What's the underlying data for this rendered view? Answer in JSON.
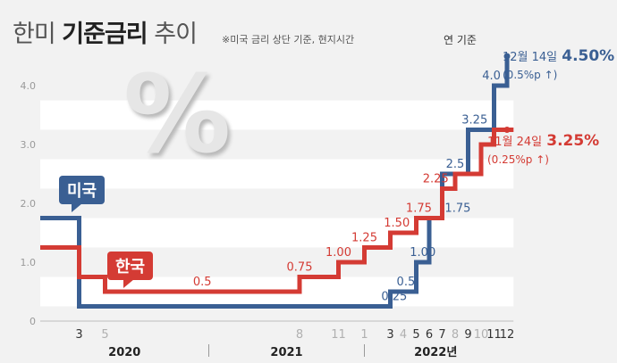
{
  "title": {
    "prefix": "한미",
    "bold": "기준금리",
    "suffix": "추이"
  },
  "note": "※미국 금리 상단 기준, 현지시간",
  "basis": "연 기준",
  "percent_symbol": "%",
  "labels": {
    "us": "미국",
    "kr": "한국"
  },
  "annotations": {
    "us": {
      "date": "12월 14일",
      "rate": "4.50%",
      "delta": "(0.5%p ↑)"
    },
    "kr": {
      "date": "11월 24일",
      "rate": "3.25%",
      "delta": "(0.25%p ↑)"
    }
  },
  "colors": {
    "us": "#3a5f93",
    "kr": "#d43b34",
    "band": "#ffffff",
    "axis": "#555555",
    "muted": "#b0b0b0"
  },
  "chart_data": {
    "type": "line",
    "step": true,
    "ylim": [
      0,
      4.5
    ],
    "yticks": [
      "0",
      "1.0",
      "2.0",
      "3.0",
      "4.0"
    ],
    "xticks": [
      {
        "label": "3",
        "month": 3,
        "emphasis": true
      },
      {
        "label": "5",
        "month": 5,
        "emphasis": false
      },
      {
        "label": "8",
        "month": 20,
        "emphasis": false
      },
      {
        "label": "11",
        "month": 23,
        "emphasis": false
      },
      {
        "label": "1",
        "month": 25,
        "emphasis": false
      },
      {
        "label": "3",
        "month": 27,
        "emphasis": true
      },
      {
        "label": "4",
        "month": 28,
        "emphasis": false
      },
      {
        "label": "5",
        "month": 29,
        "emphasis": true
      },
      {
        "label": "6",
        "month": 30,
        "emphasis": true
      },
      {
        "label": "7",
        "month": 31,
        "emphasis": true
      },
      {
        "label": "8",
        "month": 32,
        "emphasis": false
      },
      {
        "label": "9",
        "month": 33,
        "emphasis": true
      },
      {
        "label": "10",
        "month": 34,
        "emphasis": false
      },
      {
        "label": "11",
        "month": 35,
        "emphasis": true
      },
      {
        "label": "12",
        "month": 36,
        "emphasis": true
      }
    ],
    "years": [
      {
        "label": "2020",
        "month": 6.5
      },
      {
        "label": "2021",
        "month": 19
      },
      {
        "label": "2022년",
        "month": 30.5
      }
    ],
    "year_separators": [
      13,
      25
    ],
    "series": [
      {
        "name": "미국",
        "points": [
          [
            0,
            1.75
          ],
          [
            3,
            1.75
          ],
          [
            3,
            0.25
          ],
          [
            27,
            0.25
          ],
          [
            27,
            0.5
          ],
          [
            29,
            0.5
          ],
          [
            29,
            1.0
          ],
          [
            30,
            1.0
          ],
          [
            30,
            1.75
          ],
          [
            31,
            1.75
          ],
          [
            31,
            2.5
          ],
          [
            33,
            2.5
          ],
          [
            33,
            3.25
          ],
          [
            35,
            3.25
          ],
          [
            35,
            4.0
          ],
          [
            36,
            4.0
          ],
          [
            36,
            4.5
          ]
        ],
        "labels": [
          {
            "text": "0.25",
            "x": 27.3,
            "y": 0.25
          },
          {
            "text": "0.5",
            "x": 28.2,
            "y": 0.5
          },
          {
            "text": "1.00",
            "x": 29.5,
            "y": 1.0
          },
          {
            "text": "1.75",
            "x": 32.2,
            "y": 1.75
          },
          {
            "text": "2.5",
            "x": 32.0,
            "y": 2.5
          },
          {
            "text": "3.25",
            "x": 33.5,
            "y": 3.25
          },
          {
            "text": "4.0",
            "x": 34.8,
            "y": 4.0
          }
        ]
      },
      {
        "name": "한국",
        "points": [
          [
            0,
            1.25
          ],
          [
            3,
            1.25
          ],
          [
            3,
            0.75
          ],
          [
            5,
            0.75
          ],
          [
            5,
            0.5
          ],
          [
            20,
            0.5
          ],
          [
            20,
            0.75
          ],
          [
            23,
            0.75
          ],
          [
            23,
            1.0
          ],
          [
            25,
            1.0
          ],
          [
            25,
            1.25
          ],
          [
            27,
            1.25
          ],
          [
            27,
            1.5
          ],
          [
            29,
            1.5
          ],
          [
            29,
            1.75
          ],
          [
            31,
            1.75
          ],
          [
            31,
            2.25
          ],
          [
            32,
            2.25
          ],
          [
            32,
            2.5
          ],
          [
            34,
            2.5
          ],
          [
            34,
            3.0
          ],
          [
            35,
            3.0
          ],
          [
            35,
            3.25
          ],
          [
            36.5,
            3.25
          ]
        ],
        "labels": [
          {
            "text": "0.5",
            "x": 12.5,
            "y": 0.5
          },
          {
            "text": "0.75",
            "x": 20.0,
            "y": 0.75
          },
          {
            "text": "1.00",
            "x": 23.0,
            "y": 1.0
          },
          {
            "text": "1.25",
            "x": 25.0,
            "y": 1.25
          },
          {
            "text": "1.50",
            "x": 27.5,
            "y": 1.5
          },
          {
            "text": "1.75",
            "x": 29.2,
            "y": 1.75
          },
          {
            "text": "2.25",
            "x": 30.5,
            "y": 2.25
          }
        ]
      }
    ]
  }
}
